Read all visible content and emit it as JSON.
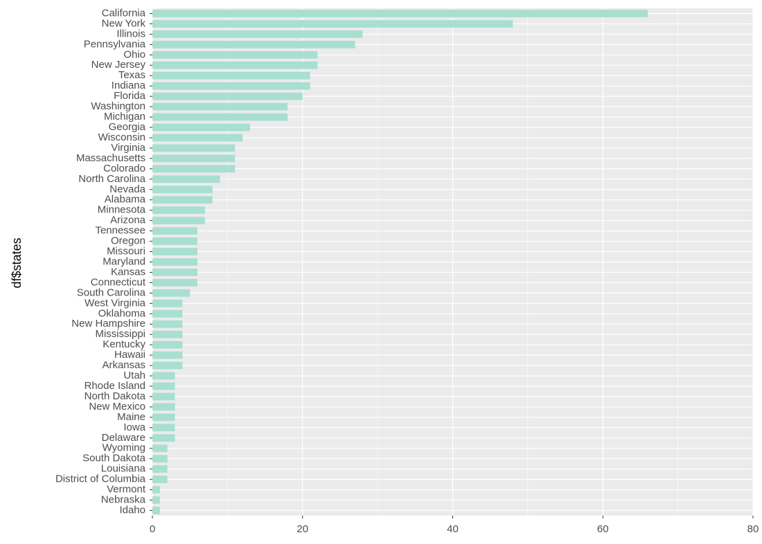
{
  "chart_data": {
    "type": "barh",
    "y_label": "df$states",
    "categories": [
      "California",
      "New York",
      "Illinois",
      "Pennsylvania",
      "Ohio",
      "New Jersey",
      "Texas",
      "Indiana",
      "Florida",
      "Washington",
      "Michigan",
      "Georgia",
      "Wisconsin",
      "Virginia",
      "Massachusetts",
      "Colorado",
      "North Carolina",
      "Nevada",
      "Alabama",
      "Minnesota",
      "Arizona",
      "Tennessee",
      "Oregon",
      "Missouri",
      "Maryland",
      "Kansas",
      "Connecticut",
      "South Carolina",
      "West Virginia",
      "Oklahoma",
      "New Hampshire",
      "Mississippi",
      "Kentucky",
      "Hawaii",
      "Arkansas",
      "Utah",
      "Rhode Island",
      "North Dakota",
      "New Mexico",
      "Maine",
      "Iowa",
      "Delaware",
      "Wyoming",
      "South Dakota",
      "Louisiana",
      "District of Columbia",
      "Vermont",
      "Nebraska",
      "Idaho"
    ],
    "values": [
      66,
      48,
      28,
      27,
      22,
      22,
      21,
      21,
      20,
      18,
      18,
      13,
      12,
      11,
      11,
      11,
      9,
      8,
      8,
      7,
      7,
      6,
      6,
      6,
      6,
      6,
      6,
      5,
      4,
      4,
      4,
      4,
      4,
      4,
      4,
      3,
      3,
      3,
      3,
      3,
      3,
      3,
      2,
      2,
      2,
      2,
      1,
      1,
      1
    ],
    "color": "#a8dfd0",
    "xlim": [
      0,
      80
    ],
    "xticks": [
      0,
      20,
      40,
      60,
      80
    ],
    "grid": true
  }
}
